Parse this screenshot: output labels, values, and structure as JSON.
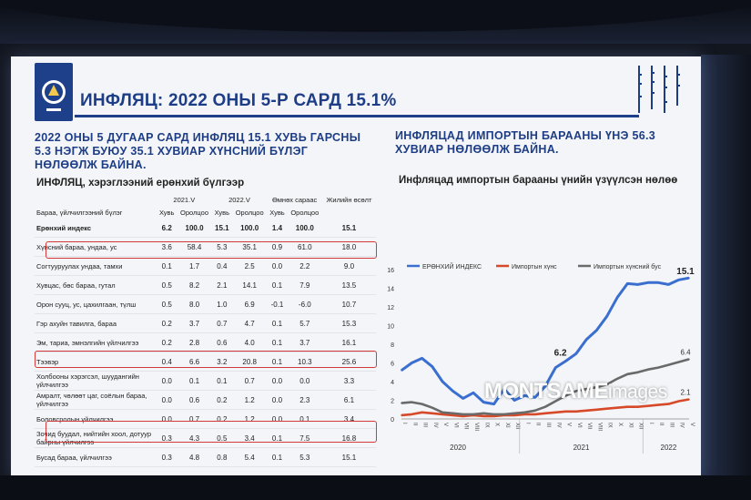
{
  "slide": {
    "title": "ИНФЛЯЦ: 2022 ОНЫ 5-Р САРД 15.1%",
    "left_headline": [
      "2022 ОНЫ 5 ДУГААР САРД ИНФЛЯЦ 15.1 ХУВЬ ГАРСНЫ",
      "5.3 НЭГЖ БУЮУ 35.1 ХУВИАР ХҮНСНИЙ БҮЛЭГ",
      "НӨЛӨӨЛЖ БАЙНА."
    ],
    "right_headline": [
      "ИНФЛЯЦАД ИМПОРТЫН БАРААНЫ ҮНЭ 56.3",
      "ХУВИАР НӨЛӨӨЛЖ БАЙНА."
    ],
    "table_title": "ИНФЛЯЦ, хэрэглээний ерөнхий бүлгээр",
    "chart_title": "Инфляцад импортын барааны үнийн үзүүлсэн нөлөө",
    "watermark_main": "MONTSAME",
    "watermark_sub": "images"
  },
  "table": {
    "group_headers": [
      "2021.V",
      "2022.V",
      "Өмнөх сараас",
      "Жилийн өсөлт"
    ],
    "row_label_header": "Бараа, үйлчилгээний бүлэг",
    "sub_headers": [
      "Хувь",
      "Оролцоо",
      "Хувь",
      "Оролцоо",
      "Хувь",
      "Оролцоо"
    ],
    "rows": [
      {
        "name": "Ерөнхий индекс",
        "v": [
          "6.2",
          "100.0",
          "15.1",
          "100.0",
          "1.4",
          "100.0",
          "15.1"
        ]
      },
      {
        "name": "Хүнсний бараа, ундаа, ус",
        "v": [
          "3.6",
          "58.4",
          "5.3",
          "35.1",
          "0.9",
          "61.0",
          "18.0"
        ]
      },
      {
        "name": "Согтууруулах ундаа, тамхи",
        "v": [
          "0.1",
          "1.7",
          "0.4",
          "2.5",
          "0.0",
          "2.2",
          "9.0"
        ]
      },
      {
        "name": "Хувцас, бөс бараа, гутал",
        "v": [
          "0.5",
          "8.2",
          "2.1",
          "14.1",
          "0.1",
          "7.9",
          "13.5"
        ]
      },
      {
        "name": "Орон сууц, ус, цахилгаан, түлш",
        "v": [
          "0.5",
          "8.0",
          "1.0",
          "6.9",
          "-0.1",
          "-6.0",
          "10.7"
        ]
      },
      {
        "name": "Гэр ахуйн тавилга, бараа",
        "v": [
          "0.2",
          "3.7",
          "0.7",
          "4.7",
          "0.1",
          "5.7",
          "15.3"
        ]
      },
      {
        "name": "Эм, тариа, эмнэлгийн үйлчилгээ",
        "v": [
          "0.2",
          "2.8",
          "0.6",
          "4.0",
          "0.1",
          "3.7",
          "16.1"
        ]
      },
      {
        "name": "Тээвэр",
        "v": [
          "0.4",
          "6.6",
          "3.2",
          "20.8",
          "0.1",
          "10.3",
          "25.6"
        ]
      },
      {
        "name": "Холбооны хэрэгсэл, шуудангийн үйлчилгээ",
        "v": [
          "0.0",
          "0.1",
          "0.1",
          "0.7",
          "0.0",
          "0.0",
          "3.3"
        ]
      },
      {
        "name": "Амралт, чөлөөт цаг, соёлын бараа, үйлчилгээ",
        "v": [
          "0.0",
          "0.6",
          "0.2",
          "1.2",
          "0.0",
          "2.3",
          "6.1"
        ]
      },
      {
        "name": "Боловсролын үйлчилгээ",
        "v": [
          "0.0",
          "0.7",
          "0.2",
          "1.2",
          "0.0",
          "0.1",
          "3.4"
        ]
      },
      {
        "name": "Зочид буудал, нийтийн хоол, дотуур байрны үйлчилгээ",
        "v": [
          "0.3",
          "4.3",
          "0.5",
          "3.4",
          "0.1",
          "7.5",
          "16.8"
        ]
      },
      {
        "name": "Бусад бараа, үйлчилгээ",
        "v": [
          "0.3",
          "4.8",
          "0.8",
          "5.4",
          "0.1",
          "5.3",
          "15.1"
        ]
      }
    ]
  },
  "chart_data": {
    "type": "line",
    "title": "Инфляцад импортын барааны үнийн үзүүлсэн нөлөө",
    "ylim": [
      0,
      16
    ],
    "yticks": [
      "0",
      "2",
      "4",
      "6",
      "8",
      "10",
      "12",
      "14",
      "16"
    ],
    "x": [
      "I",
      "II",
      "III",
      "IV",
      "V",
      "VI",
      "VII",
      "VIII",
      "IX",
      "X",
      "XI",
      "XII",
      "I",
      "II",
      "III",
      "IV",
      "V",
      "VI",
      "VII",
      "VIII",
      "IX",
      "X",
      "XI",
      "XII",
      "I",
      "II",
      "III",
      "IV",
      "V"
    ],
    "years": [
      "2020",
      "2021",
      "2022"
    ],
    "series": [
      {
        "name": "ЕРӨНХИЙ ИНДЕКС",
        "color": "#3a6fd0",
        "values": [
          5.2,
          6.0,
          6.5,
          5.6,
          4.0,
          3.0,
          2.2,
          2.8,
          1.8,
          1.6,
          3.2,
          2.0,
          2.5,
          2.3,
          3.5,
          5.5,
          6.2,
          7.0,
          8.5,
          9.5,
          11.0,
          13.0,
          14.5,
          14.4,
          14.6,
          14.6,
          14.4,
          14.9,
          15.1
        ]
      },
      {
        "name": "Импортын хүнс",
        "color": "#d64a2a",
        "values": [
          0.4,
          0.5,
          0.7,
          0.6,
          0.5,
          0.4,
          0.3,
          0.4,
          0.3,
          0.3,
          0.4,
          0.4,
          0.5,
          0.5,
          0.6,
          0.7,
          0.8,
          0.8,
          0.9,
          1.0,
          1.1,
          1.2,
          1.3,
          1.3,
          1.4,
          1.5,
          1.6,
          1.9,
          2.1
        ]
      },
      {
        "name": "Импортын хүнсний бус",
        "color": "#6a6a6a",
        "values": [
          1.7,
          1.8,
          1.6,
          1.2,
          0.7,
          0.6,
          0.5,
          0.5,
          0.6,
          0.5,
          0.5,
          0.6,
          0.7,
          0.9,
          1.3,
          1.9,
          2.5,
          3.0,
          3.2,
          3.4,
          3.7,
          4.3,
          4.8,
          5.0,
          5.3,
          5.5,
          5.8,
          6.1,
          6.4
        ]
      }
    ],
    "labels": {
      "first": "6.2",
      "last_total": "15.1",
      "last_nonfood": "6.4",
      "last_food": "2.1"
    }
  }
}
